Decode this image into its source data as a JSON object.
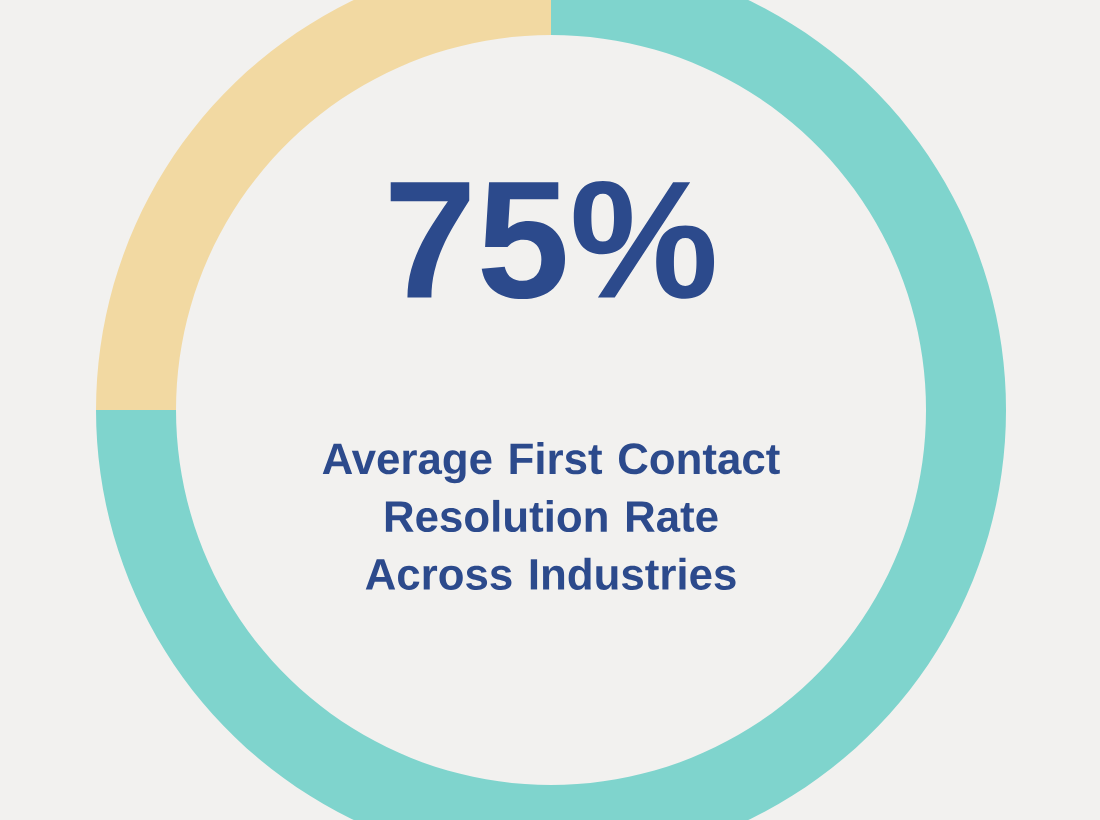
{
  "chart_data": {
    "type": "donut",
    "title": "Average First Contact Resolution Rate Across Industries",
    "categories": [
      null,
      null
    ],
    "values": [
      75,
      25
    ],
    "colors": [
      "#7fd4cd",
      "#f2d9a2"
    ],
    "value_labels": [
      "75%",
      null
    ]
  }
}
